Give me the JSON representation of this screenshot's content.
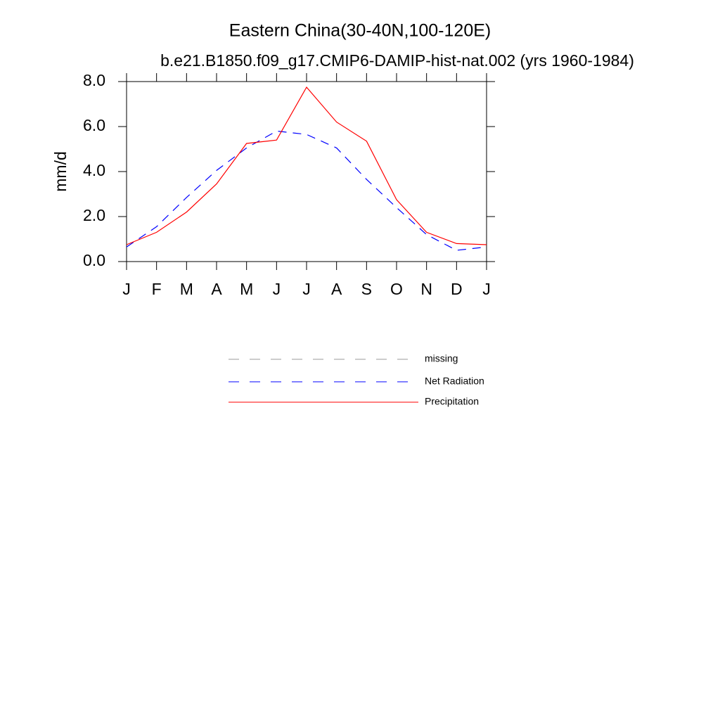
{
  "chart_data": {
    "type": "line",
    "title": "Eastern China(30-40N,100-120E)",
    "subtitle": "b.e21.B1850.f09_g17.CMIP6-DAMIP-hist-nat.002 (yrs 1960-1984)",
    "y_label": "mm/d",
    "categories": [
      "J",
      "F",
      "M",
      "A",
      "M",
      "J",
      "J",
      "A",
      "S",
      "O",
      "N",
      "D",
      "J"
    ],
    "ylim": [
      0,
      8
    ],
    "yticks": [
      {
        "value": 0,
        "label": "0.0"
      },
      {
        "value": 2,
        "label": "2.0"
      },
      {
        "value": 4,
        "label": "4.0"
      },
      {
        "value": 6,
        "label": "6.0"
      },
      {
        "value": 8,
        "label": "8.0"
      }
    ],
    "series": [
      {
        "name": "missing",
        "color": "#999999",
        "dash": true,
        "values": [
          null,
          null,
          null,
          null,
          null,
          null,
          null,
          null,
          null,
          null,
          null,
          null,
          null
        ]
      },
      {
        "name": "Net Radiation",
        "color": "#0000ff",
        "dash": true,
        "values": [
          0.65,
          1.55,
          2.85,
          4.05,
          5.05,
          5.8,
          5.65,
          5.05,
          3.65,
          2.4,
          1.2,
          0.5,
          0.65
        ]
      },
      {
        "name": "Precipitation",
        "color": "#ff0000",
        "dash": false,
        "values": [
          0.75,
          1.3,
          2.2,
          3.45,
          5.25,
          5.4,
          7.75,
          6.2,
          5.35,
          2.75,
          1.3,
          0.8,
          0.75
        ]
      }
    ]
  }
}
